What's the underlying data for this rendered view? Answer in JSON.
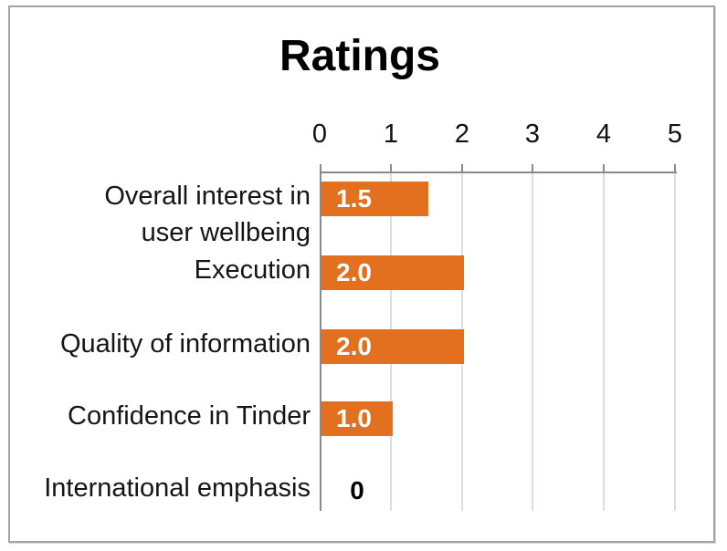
{
  "chart_data": {
    "type": "bar",
    "orientation": "horizontal",
    "title": "Ratings",
    "categories": [
      "Overall interest in\nuser wellbeing",
      "Execution",
      "Quality of information",
      "Confidence in Tinder",
      "International emphasis"
    ],
    "values": [
      1.5,
      2.0,
      2.0,
      1.0,
      0
    ],
    "value_labels": [
      "1.5",
      "2.0",
      "2.0",
      "1.0",
      "0"
    ],
    "xlabel": "",
    "ylabel": "",
    "xlim": [
      0,
      5
    ],
    "x_ticks": [
      "0",
      "1",
      "2",
      "3",
      "4",
      "5"
    ],
    "axis_position": "top",
    "grid": true,
    "legend": false,
    "colors": {
      "bar": "#e2701e",
      "gridline": "#d4deef",
      "axis_line": "#8a8a8a",
      "title_text": "#000000",
      "category_text": "#151515",
      "tick_text": "#111111",
      "data_label_inside": "#ffffff",
      "data_label_zero": "#000000",
      "frame_border": "#a4a4a4",
      "background": "#ffffff"
    }
  }
}
